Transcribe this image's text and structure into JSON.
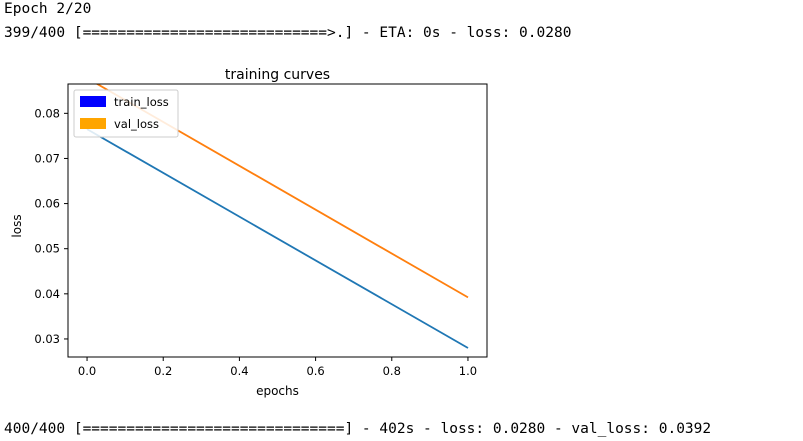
{
  "console": {
    "epoch_line": "Epoch 2/20",
    "progress_line": "399/400 [============================>.] - ETA: 0s - loss: 0.0280",
    "final_line": "400/400 [==============================] - 402s - loss: 0.0280 - val_loss: 0.0392"
  },
  "chart_data": {
    "type": "line",
    "title": "training curves",
    "xlabel": "epochs",
    "ylabel": "loss",
    "xlim": [
      -0.05,
      1.05
    ],
    "ylim": [
      0.026,
      0.0865
    ],
    "xticks": [
      0.0,
      0.2,
      0.4,
      0.6,
      0.8,
      1.0
    ],
    "xtick_labels": [
      "0.0",
      "0.2",
      "0.4",
      "0.6",
      "0.8",
      "1.0"
    ],
    "yticks": [
      0.03,
      0.04,
      0.05,
      0.06,
      0.07,
      0.08
    ],
    "ytick_labels": [
      "0.03",
      "0.04",
      "0.05",
      "0.06",
      "0.07",
      "0.08"
    ],
    "grid": false,
    "legend_position": "top-left",
    "legend": [
      {
        "label": "train_loss",
        "color": "#0000ff"
      },
      {
        "label": "val_loss",
        "color": "#ffa500"
      }
    ],
    "series": [
      {
        "name": "train_loss",
        "color": "#1f77b4",
        "x": [
          0.0,
          1.0
        ],
        "y": [
          0.0765,
          0.028
        ]
      },
      {
        "name": "val_loss",
        "color": "#ff7f0e",
        "x": [
          0.0,
          1.0
        ],
        "y": [
          0.0878,
          0.0392
        ]
      }
    ]
  }
}
